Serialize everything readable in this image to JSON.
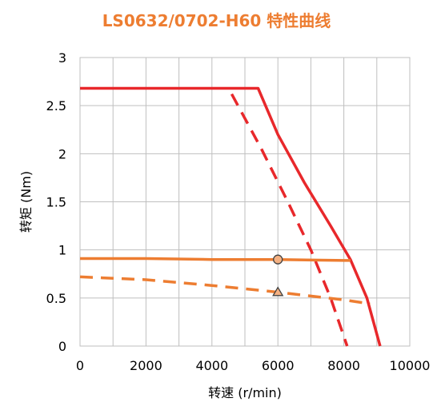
{
  "chart_data": {
    "type": "line",
    "title": "LS0632/0702-H60 特性曲线",
    "xlabel": "转速 (r/min)",
    "ylabel": "转矩 (Nm)",
    "xlim": [
      0,
      10000
    ],
    "ylim": [
      0,
      3
    ],
    "xticks": [
      0,
      2000,
      4000,
      6000,
      8000,
      10000
    ],
    "yticks": [
      0,
      0.5,
      1,
      1.5,
      2,
      2.5,
      3
    ],
    "xtick_labels": [
      "0",
      "2000",
      "4000",
      "6000",
      "8000",
      "10000"
    ],
    "ytick_labels": [
      "0",
      "0.5",
      "1",
      "1.5",
      "2",
      "2.5",
      "3"
    ],
    "grid": true,
    "legend": "none",
    "series": [
      {
        "color": "#E8282B",
        "style": "solid",
        "x": [
          0,
          5400,
          6000,
          6800,
          7600,
          8200,
          8700,
          9100
        ],
        "y": [
          2.68,
          2.68,
          2.2,
          1.7,
          1.25,
          0.9,
          0.5,
          0
        ]
      },
      {
        "color": "#E8282B",
        "style": "dashed",
        "x": [
          4600,
          5500,
          6300,
          7000,
          7600,
          8100
        ],
        "y": [
          2.62,
          2.05,
          1.5,
          1.0,
          0.5,
          0
        ]
      },
      {
        "color": "#ED7D31",
        "style": "solid",
        "x": [
          0,
          2000,
          4000,
          6000,
          8000,
          8200
        ],
        "y": [
          0.91,
          0.91,
          0.9,
          0.9,
          0.89,
          0.89
        ]
      },
      {
        "color": "#ED7D31",
        "style": "dashed",
        "x": [
          0,
          2000,
          4000,
          6000,
          8000,
          8800
        ],
        "y": [
          0.72,
          0.69,
          0.63,
          0.56,
          0.48,
          0.44
        ]
      }
    ],
    "markers": [
      {
        "shape": "circle",
        "x": 6000,
        "y": 0.9,
        "color": "#ED7D31"
      },
      {
        "shape": "triangle",
        "x": 6000,
        "y": 0.56,
        "color": "#ED7D31"
      }
    ]
  }
}
